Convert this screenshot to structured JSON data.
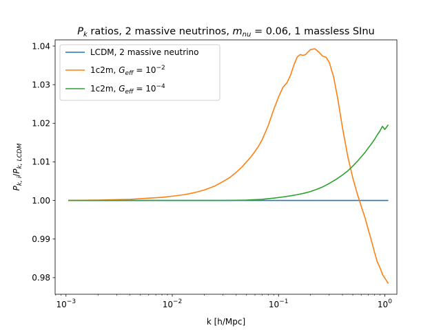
{
  "chart_data": {
    "type": "line",
    "title": {
      "prefix_main": "P",
      "prefix_sub": "k",
      "middle": " ratios, 2 massive neutrinos, ",
      "m_main": "m",
      "m_sub": "nu",
      "m_value": " = 0.06, 1 massless SInu"
    },
    "xlabel": "k [h/Mpc]",
    "ylabel": {
      "num_main": "P",
      "num_sub": "k, i",
      "den_main": "P",
      "den_sub": "k, LCDM"
    },
    "xscale": "log",
    "xlim": [
      0.00079,
      1.3
    ],
    "ylim": [
      0.9757,
      1.0416
    ],
    "xticks": [
      {
        "value": 0.001,
        "base": "10",
        "exp": "−3"
      },
      {
        "value": 0.01,
        "base": "10",
        "exp": "−2"
      },
      {
        "value": 0.1,
        "base": "10",
        "exp": "−1"
      },
      {
        "value": 1,
        "base": "10",
        "exp": "0"
      }
    ],
    "yticks": [
      0.98,
      0.99,
      1.0,
      1.01,
      1.02,
      1.03,
      1.04
    ],
    "ytick_labels": [
      "0.98",
      "0.99",
      "1.00",
      "1.01",
      "1.02",
      "1.03",
      "1.04"
    ],
    "grid": false,
    "legend_position": "upper-left",
    "series": [
      {
        "name": "LCDM, 2 massive neutrino",
        "color": "#1f77b4",
        "x": [
          0.00105,
          0.003,
          0.01,
          0.03,
          0.1,
          0.3,
          1.08
        ],
        "y": [
          1.0,
          1.0,
          1.0,
          1.0,
          1.0,
          1.0,
          1.0
        ]
      },
      {
        "name_prefix": "1c2m, ",
        "name_g": "G",
        "name_g_sub": "eff",
        "name_eq": " = 10",
        "name_exp": "−2",
        "color": "#ff7f0e",
        "x": [
          0.00105,
          0.002,
          0.004,
          0.006,
          0.008,
          0.01,
          0.013,
          0.016,
          0.02,
          0.025,
          0.03,
          0.035,
          0.04,
          0.045,
          0.05,
          0.055,
          0.06,
          0.065,
          0.07,
          0.08,
          0.09,
          0.1,
          0.11,
          0.12,
          0.13,
          0.14,
          0.15,
          0.16,
          0.17,
          0.18,
          0.19,
          0.2,
          0.22,
          0.24,
          0.26,
          0.28,
          0.3,
          0.33,
          0.36,
          0.4,
          0.45,
          0.5,
          0.55,
          0.6,
          0.65,
          0.7,
          0.75,
          0.8,
          0.85,
          0.9,
          0.95,
          1.0,
          1.08
        ],
        "y": [
          1.0,
          1.0001,
          1.0003,
          1.0006,
          1.0008,
          1.0011,
          1.0015,
          1.002,
          1.0027,
          1.0037,
          1.0049,
          1.006,
          1.0073,
          1.0086,
          1.01,
          1.0113,
          1.0127,
          1.0141,
          1.0157,
          1.0194,
          1.0235,
          1.0268,
          1.0293,
          1.0305,
          1.0325,
          1.0352,
          1.0372,
          1.0378,
          1.0376,
          1.0378,
          1.0385,
          1.0391,
          1.0393,
          1.0384,
          1.0374,
          1.0371,
          1.0358,
          1.032,
          1.0265,
          1.0188,
          1.0112,
          1.0058,
          1.0018,
          0.9985,
          0.9956,
          0.9924,
          0.9895,
          0.9866,
          0.9841,
          0.9826,
          0.9809,
          0.9799,
          0.9785
        ]
      },
      {
        "name_prefix": "1c2m, ",
        "name_g": "G",
        "name_g_sub": "eff",
        "name_eq": " = 10",
        "name_exp": "−4",
        "color": "#2ca02c",
        "x": [
          0.00105,
          0.003,
          0.01,
          0.02,
          0.03,
          0.05,
          0.07,
          0.09,
          0.11,
          0.13,
          0.15,
          0.17,
          0.2,
          0.23,
          0.26,
          0.3,
          0.35,
          0.4,
          0.45,
          0.5,
          0.55,
          0.6,
          0.65,
          0.7,
          0.75,
          0.8,
          0.85,
          0.9,
          0.95,
          1.0,
          1.08
        ],
        "y": [
          1.0,
          1.0,
          1.0,
          1.0,
          1.0,
          1.0001,
          1.0003,
          1.0006,
          1.0009,
          1.0012,
          1.0015,
          1.0018,
          1.0023,
          1.0029,
          1.0035,
          1.0044,
          1.0055,
          1.0066,
          1.0077,
          1.0089,
          1.0101,
          1.0113,
          1.0124,
          1.0136,
          1.0147,
          1.0158,
          1.017,
          1.018,
          1.0192,
          1.0184,
          1.0196
        ]
      }
    ]
  }
}
